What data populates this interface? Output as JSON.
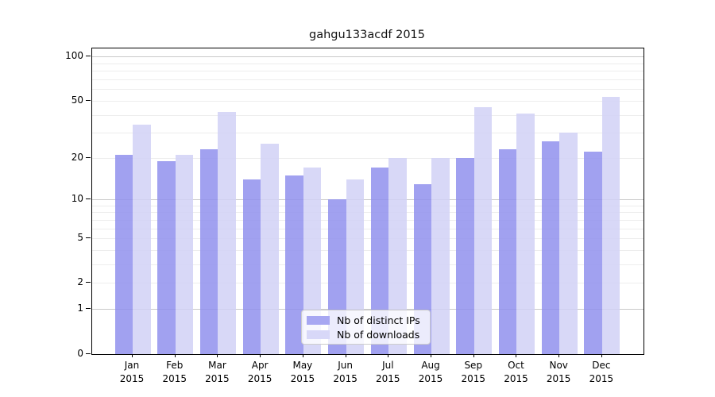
{
  "title": "gahgu133acdf 2015",
  "chart_data": {
    "type": "bar",
    "title": "gahgu133acdf 2015",
    "xlabel": "",
    "ylabel": "",
    "x_tick_line2": "2015",
    "categories": [
      "Jan",
      "Feb",
      "Mar",
      "Apr",
      "May",
      "Jun",
      "Jul",
      "Aug",
      "Sep",
      "Oct",
      "Nov",
      "Dec"
    ],
    "series": [
      {
        "name": "Nb of distinct IPs",
        "values": [
          21,
          19,
          23,
          14,
          15,
          10,
          17,
          13,
          20,
          23,
          26,
          22
        ],
        "bar_color": "#9191ed",
        "legend_color": "#a7a7f2"
      },
      {
        "name": "Nb of downloads",
        "values": [
          34,
          21,
          42,
          25,
          17,
          14,
          20,
          20,
          45,
          41,
          30,
          53
        ],
        "bar_color": "#d1d1f6",
        "legend_color": "#d8d8f8"
      }
    ],
    "y_scale": "log1p",
    "y_axis_ticks": [
      0,
      1,
      2,
      5,
      10,
      20,
      50,
      100
    ],
    "major_gridlines": [
      1,
      10,
      100
    ],
    "minor_gridlines": [
      2,
      3,
      4,
      5,
      6,
      7,
      8,
      9,
      20,
      30,
      40,
      50,
      60,
      70,
      80,
      90
    ],
    "ylim": [
      0,
      114
    ],
    "grid": true,
    "legend_position": "lower center",
    "colors": {
      "grid_minor": "#ededed",
      "grid_major": "#c9c9c9",
      "axis": "#000000",
      "legend_border": "#cccccc"
    }
  },
  "legend": {
    "entries": [
      "Nb of distinct IPs",
      "Nb of downloads"
    ]
  }
}
